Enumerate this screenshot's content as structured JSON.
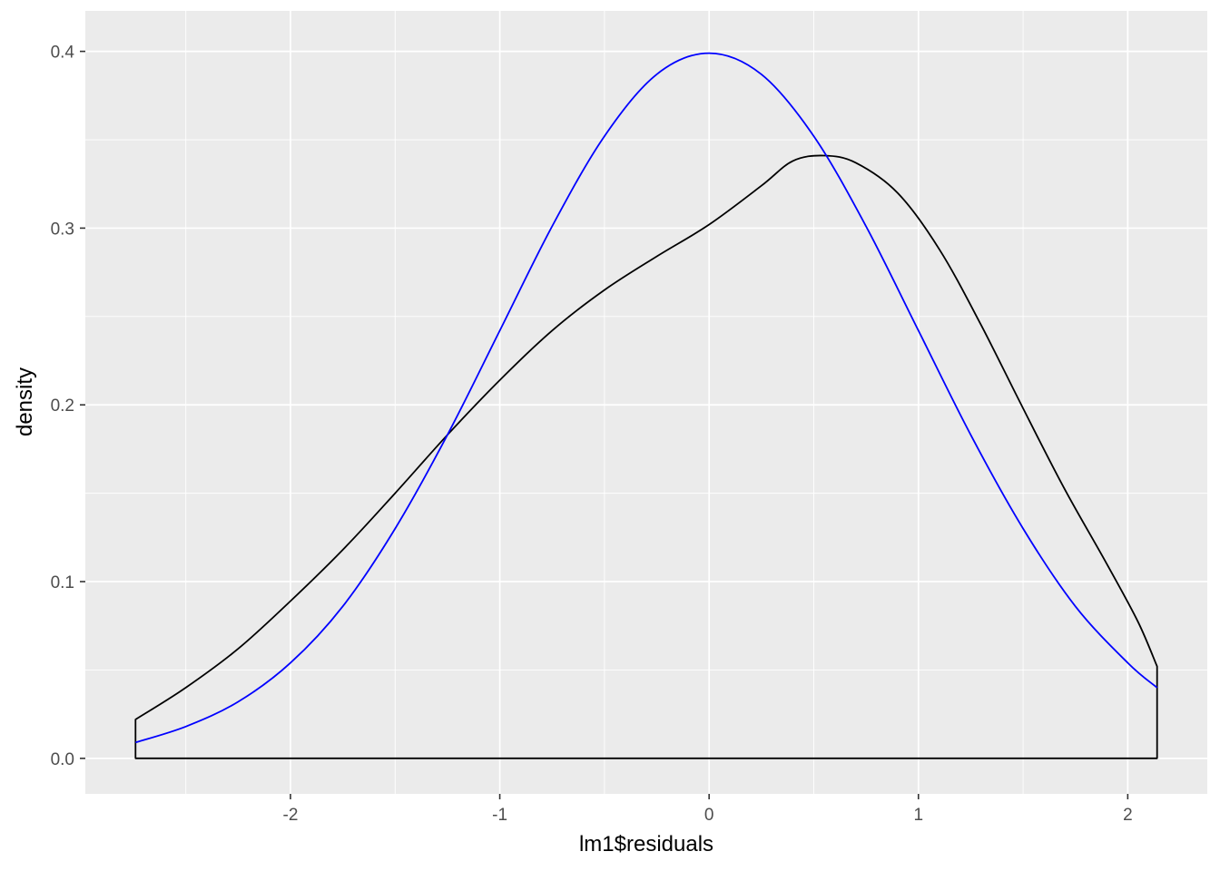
{
  "style": {
    "background": "#FFFFFF",
    "panel_fill": "#EBEBEB",
    "grid_color": "#FFFFFF",
    "tick_mark_color": "#333333",
    "tick_label_color": "#4D4D4D",
    "axis_title_color": "#000000",
    "empirical_curve_color": "#000000",
    "normal_curve_color": "#0000FF"
  },
  "chart_data": {
    "type": "line",
    "title": "",
    "xlabel": "lm1$residuals",
    "ylabel": "density",
    "xlim": [
      -2.98,
      2.38
    ],
    "ylim": [
      -0.0201,
      0.4229
    ],
    "grid": "on",
    "legend": "none",
    "x_ticks": [
      -2,
      -1,
      0,
      1,
      2
    ],
    "x_tick_labels": [
      "-2",
      "-1",
      "0",
      "1",
      "2"
    ],
    "x_minor_ticks": [
      -2.5,
      -1.5,
      -0.5,
      0.5,
      1.5
    ],
    "y_ticks": [
      0.0,
      0.1,
      0.2,
      0.3,
      0.4
    ],
    "y_tick_labels": [
      "0.0",
      "0.1",
      "0.2",
      "0.3",
      "0.4"
    ],
    "y_minor_ticks": [
      0.05,
      0.15,
      0.25,
      0.35
    ],
    "series": [
      {
        "name": "empirical-density",
        "description": "kernel density estimate of lm1$residuals (black, closed to baseline)",
        "color": "#000000",
        "closed_to_baseline": true,
        "points": [
          [
            -2.74,
            0.022
          ],
          [
            -2.5,
            0.04
          ],
          [
            -2.25,
            0.062
          ],
          [
            -2.0,
            0.089
          ],
          [
            -1.75,
            0.118
          ],
          [
            -1.5,
            0.15
          ],
          [
            -1.25,
            0.183
          ],
          [
            -1.0,
            0.214
          ],
          [
            -0.75,
            0.242
          ],
          [
            -0.5,
            0.265
          ],
          [
            -0.25,
            0.284
          ],
          [
            0.0,
            0.302
          ],
          [
            0.25,
            0.324
          ],
          [
            0.4,
            0.338
          ],
          [
            0.55,
            0.341
          ],
          [
            0.7,
            0.337
          ],
          [
            0.9,
            0.32
          ],
          [
            1.1,
            0.288
          ],
          [
            1.3,
            0.245
          ],
          [
            1.5,
            0.198
          ],
          [
            1.7,
            0.152
          ],
          [
            1.9,
            0.11
          ],
          [
            2.05,
            0.077
          ],
          [
            2.14,
            0.052
          ]
        ]
      },
      {
        "name": "normal-density",
        "description": "standard normal density overlay (blue)",
        "color": "#0000FF",
        "closed_to_baseline": false,
        "points": [
          [
            -2.74,
            0.009
          ],
          [
            -2.5,
            0.018
          ],
          [
            -2.25,
            0.032
          ],
          [
            -2.0,
            0.054
          ],
          [
            -1.75,
            0.086
          ],
          [
            -1.5,
            0.13
          ],
          [
            -1.25,
            0.183
          ],
          [
            -1.0,
            0.242
          ],
          [
            -0.75,
            0.301
          ],
          [
            -0.5,
            0.352
          ],
          [
            -0.25,
            0.387
          ],
          [
            0.0,
            0.399
          ],
          [
            0.25,
            0.387
          ],
          [
            0.5,
            0.352
          ],
          [
            0.75,
            0.301
          ],
          [
            1.0,
            0.242
          ],
          [
            1.25,
            0.183
          ],
          [
            1.5,
            0.13
          ],
          [
            1.75,
            0.086
          ],
          [
            2.0,
            0.054
          ],
          [
            2.14,
            0.04
          ]
        ]
      }
    ]
  }
}
